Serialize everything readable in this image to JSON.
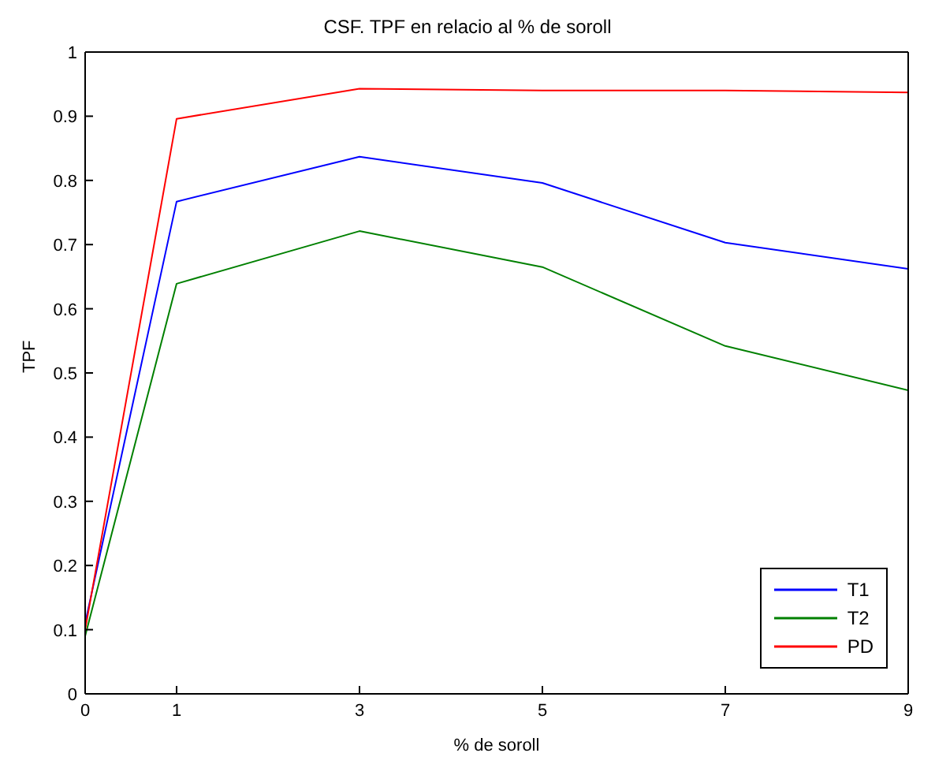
{
  "chart_data": {
    "type": "line",
    "title": "CSF. TPF en relacio al % de soroll",
    "xlabel": "% de soroll",
    "ylabel": "TPF",
    "x": [
      0,
      1,
      3,
      5,
      7,
      9
    ],
    "series": [
      {
        "name": "T1",
        "color": "#0000ff",
        "values": [
          0.11,
          0.767,
          0.837,
          0.796,
          0.703,
          0.662
        ]
      },
      {
        "name": "T2",
        "color": "#008000",
        "values": [
          0.09,
          0.639,
          0.721,
          0.665,
          0.542,
          0.473
        ]
      },
      {
        "name": "PD",
        "color": "#ff0000",
        "values": [
          0.1,
          0.896,
          0.943,
          0.94,
          0.94,
          0.937
        ]
      }
    ],
    "xlim": [
      0,
      9
    ],
    "xticks": [
      0,
      1,
      3,
      5,
      7,
      9
    ],
    "ylim": [
      0,
      1
    ],
    "yticks": [
      0,
      0.1,
      0.2,
      0.3,
      0.4,
      0.5,
      0.6,
      0.7,
      0.8,
      0.9,
      1
    ],
    "grid": false,
    "legend": "bottom right",
    "marker": "none",
    "line_style": "solid"
  }
}
